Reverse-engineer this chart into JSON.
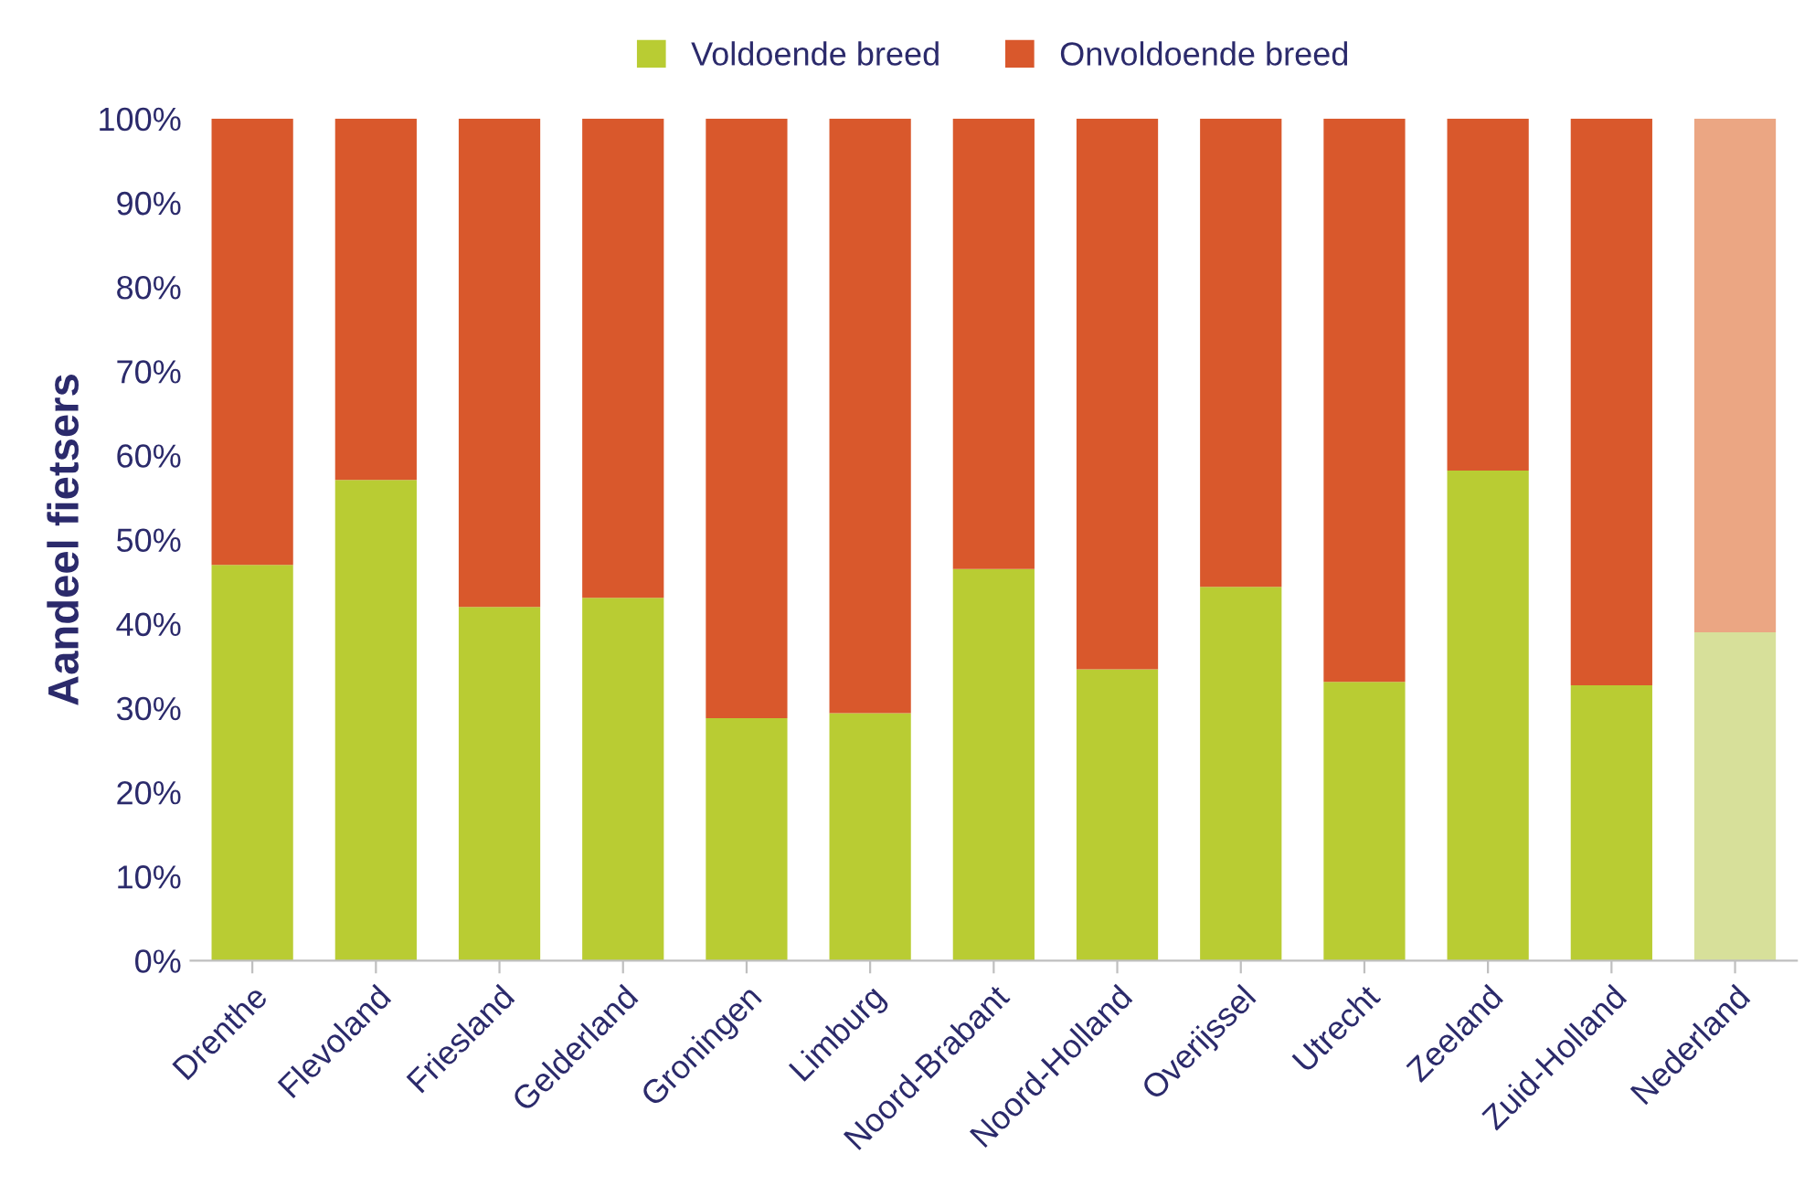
{
  "chart_data": {
    "type": "bar",
    "stacked": true,
    "ylabel": "Aandeel fietsers",
    "categories": [
      "Drenthe",
      "Flevoland",
      "Friesland",
      "Gelderland",
      "Groningen",
      "Limburg",
      "Noord-Brabant",
      "Noord-Holland",
      "Overijssel",
      "Utrecht",
      "Zeeland",
      "Zuid-Holland",
      "Nederland"
    ],
    "series": [
      {
        "name": "Voldoende breed",
        "color": "#b9cc33",
        "colors": [
          "#b9cc33",
          "#b9cc33",
          "#b9cc33",
          "#b9cc33",
          "#b9cc33",
          "#b9cc33",
          "#b9cc33",
          "#b9cc33",
          "#b9cc33",
          "#b9cc33",
          "#b9cc33",
          "#b9cc33",
          "#d7e09a"
        ],
        "values": [
          47.0,
          57.1,
          42.0,
          43.1,
          28.8,
          29.4,
          46.5,
          34.6,
          44.4,
          33.1,
          58.2,
          32.7,
          39.0
        ]
      },
      {
        "name": "Onvoldoende breed",
        "color": "#d9582c",
        "colors": [
          "#d9582c",
          "#d9582c",
          "#d9582c",
          "#d9582c",
          "#d9582c",
          "#d9582c",
          "#d9582c",
          "#d9582c",
          "#d9582c",
          "#d9582c",
          "#d9582c",
          "#d9582c",
          "#eba683"
        ],
        "values": [
          53.0,
          42.9,
          58.0,
          56.9,
          71.2,
          70.6,
          53.5,
          65.4,
          55.6,
          66.9,
          41.8,
          67.3,
          61.0
        ]
      }
    ],
    "ylim": [
      0,
      100
    ],
    "yticks": [
      {
        "value": 0,
        "label": "0%"
      },
      {
        "value": 10,
        "label": "10%"
      },
      {
        "value": 20,
        "label": "20%"
      },
      {
        "value": 30,
        "label": "30%"
      },
      {
        "value": 40,
        "label": "40%"
      },
      {
        "value": 50,
        "label": "50%"
      },
      {
        "value": 60,
        "label": "60%"
      },
      {
        "value": 70,
        "label": "70%"
      },
      {
        "value": 80,
        "label": "80%"
      },
      {
        "value": 90,
        "label": "90%"
      },
      {
        "value": 100,
        "label": "100%"
      }
    ],
    "legend": "top",
    "grid": false
  }
}
